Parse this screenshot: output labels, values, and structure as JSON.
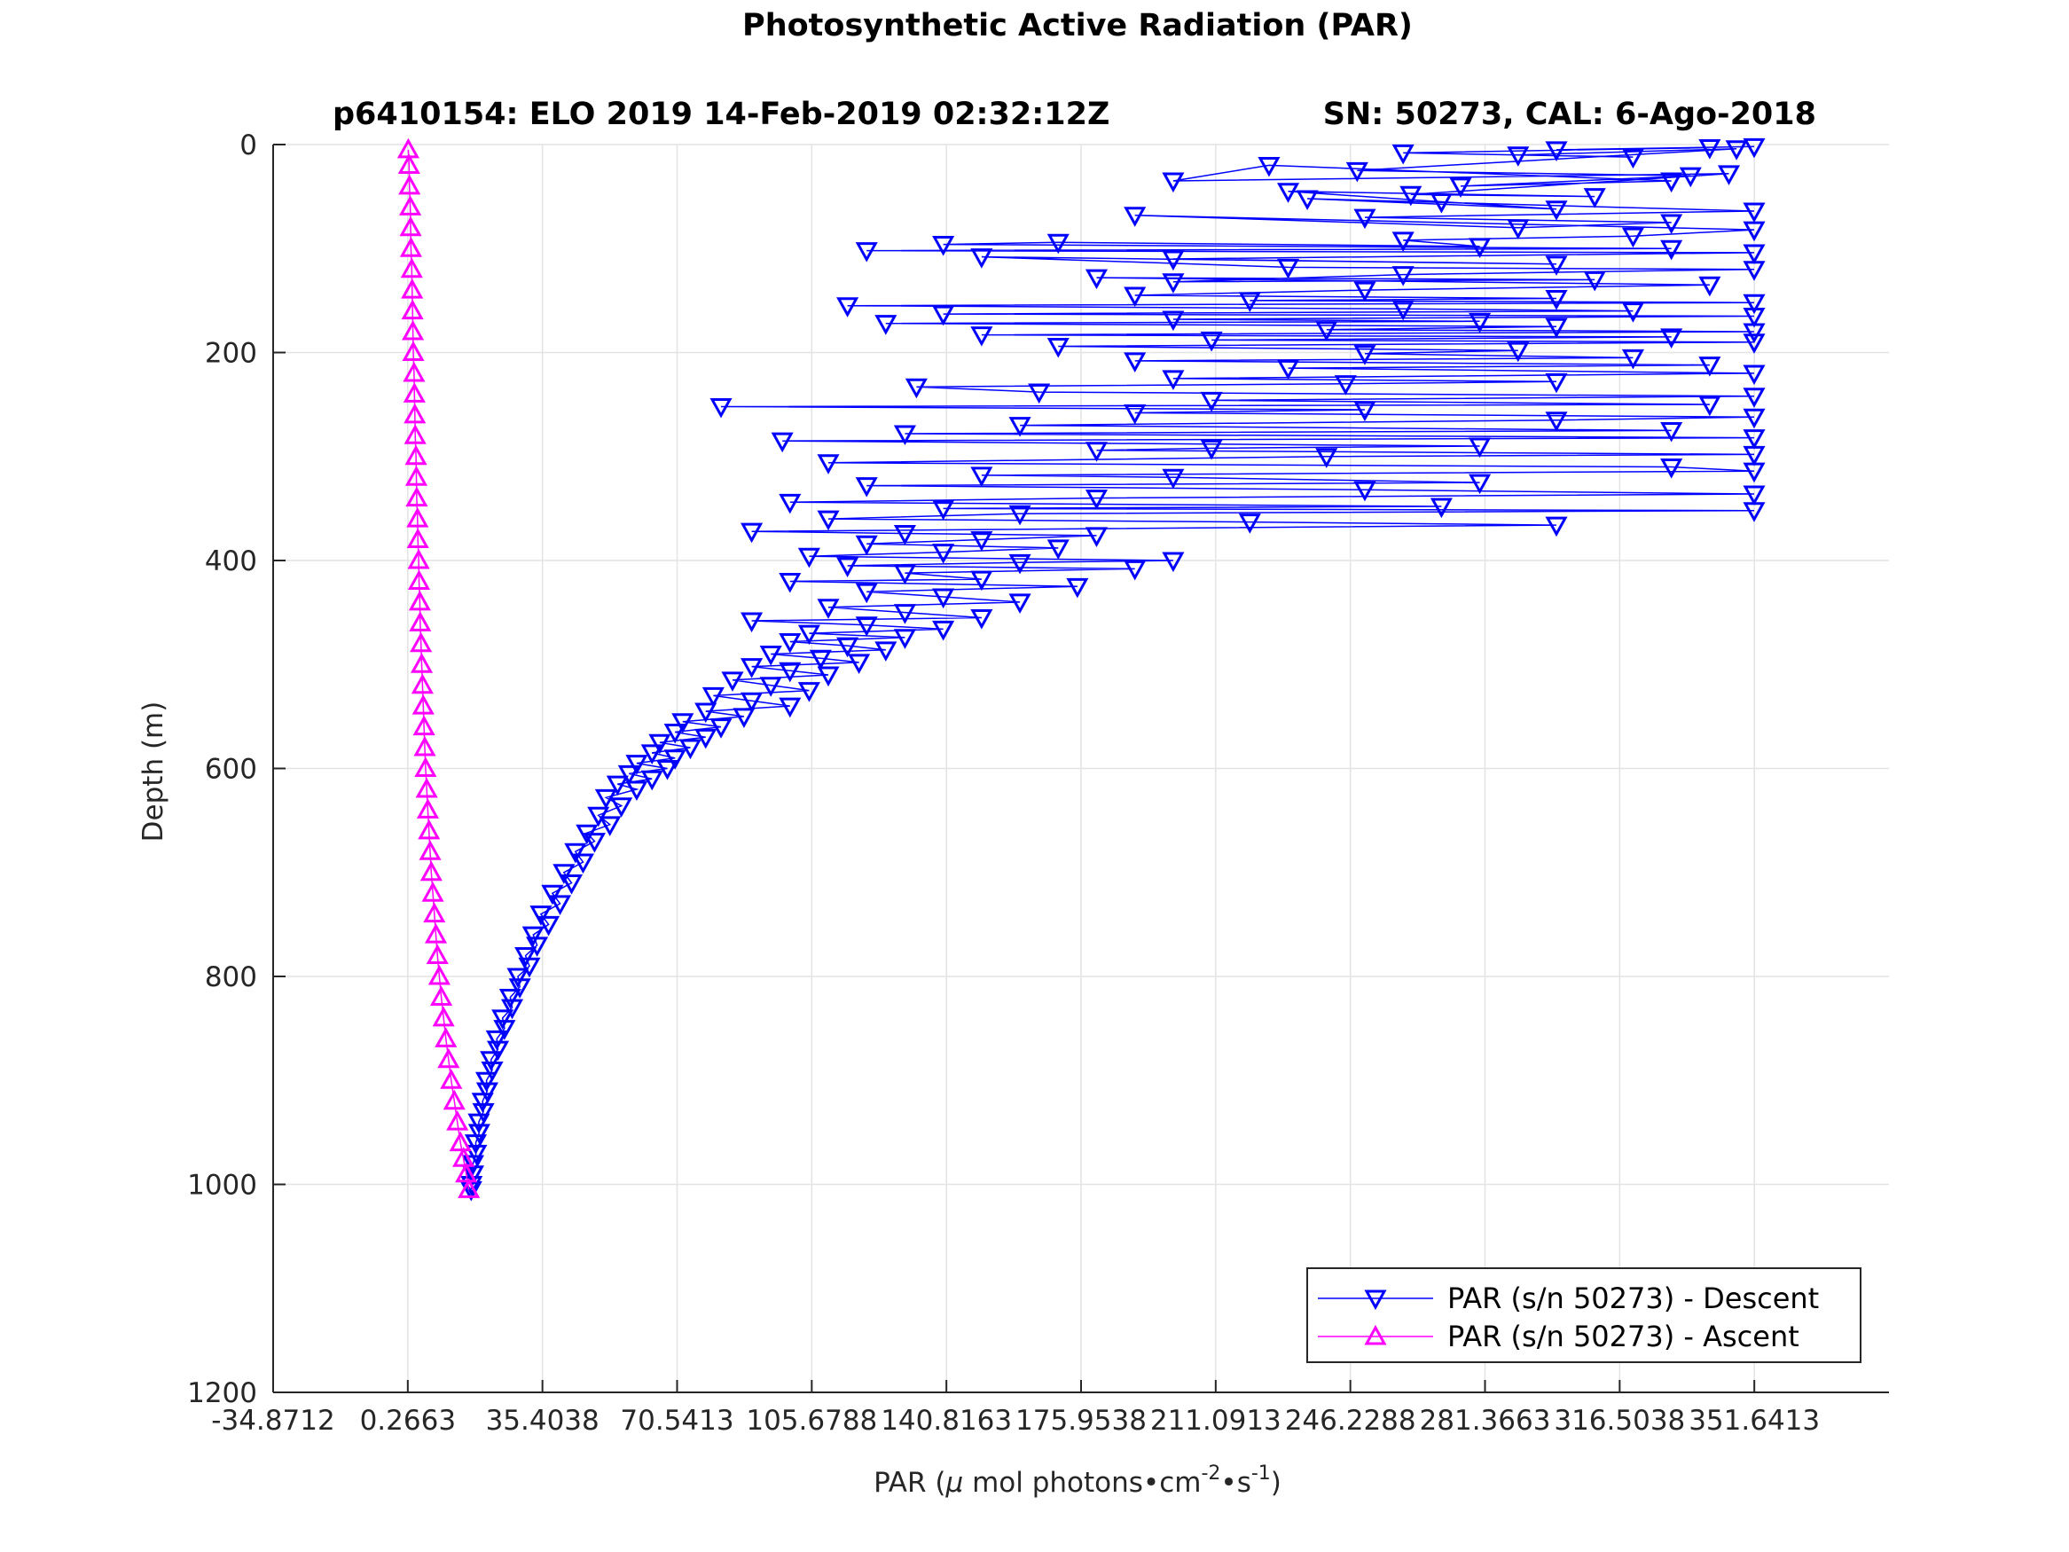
{
  "chart_data": {
    "type": "line",
    "title": "Photosynthetic Active Radiation (PAR)",
    "subtitle_left": "p6410154: ELO 2019 14-Feb-2019 02:32:12Z",
    "subtitle_right": "SN: 50273, CAL: 6-Ago-2018",
    "xlabel_prefix": "PAR (",
    "xlabel_mu": "μ",
    "xlabel_mid": " mol photons",
    "xlabel_bullet1": "•",
    "xlabel_cm": "cm",
    "xlabel_sup1": "-2",
    "xlabel_bullet2": "•",
    "xlabel_s": "s",
    "xlabel_sup2": "-1",
    "xlabel_suffix": ")",
    "ylabel": "Depth (m)",
    "xlim": [
      -34.8712,
      386.7788
    ],
    "ylim": [
      0,
      1200
    ],
    "y_reversed": true,
    "grid": true,
    "xticks": [
      -34.8712,
      0.2663,
      35.4038,
      70.5413,
      105.6788,
      140.8163,
      175.9538,
      211.0913,
      246.2288,
      281.3663,
      316.5038,
      351.6413
    ],
    "xtick_labels": [
      "-34.8712",
      "0.2663",
      "35.4038",
      "70.5413",
      "105.6788",
      "140.8163",
      "175.9538",
      "211.0913",
      "246.2288",
      "281.3663",
      "316.5038",
      "351.6413"
    ],
    "yticks": [
      0,
      200,
      400,
      600,
      800,
      1000,
      1200
    ],
    "ytick_labels": [
      "0",
      "200",
      "400",
      "600",
      "800",
      "1000",
      "1200"
    ],
    "legend_position": "bottom-right",
    "series": [
      {
        "name": "PAR (s/n 50273) - Descent",
        "color": "#0000ff",
        "marker": "triangle-down",
        "points": [
          [
            351.6,
            2
          ],
          [
            300,
            5
          ],
          [
            340,
            3
          ],
          [
            260,
            8
          ],
          [
            320,
            12
          ],
          [
            290,
            10
          ],
          [
            347,
            4
          ],
          [
            248,
            25
          ],
          [
            335,
            30
          ],
          [
            275,
            40
          ],
          [
            330,
            35
          ],
          [
            225,
            20
          ],
          [
            200,
            35
          ],
          [
            345,
            28
          ],
          [
            262,
            48
          ],
          [
            310,
            50
          ],
          [
            230,
            45
          ],
          [
            270,
            55
          ],
          [
            300,
            62
          ],
          [
            235,
            52
          ],
          [
            351.6,
            64
          ],
          [
            250,
            70
          ],
          [
            330,
            75
          ],
          [
            290,
            80
          ],
          [
            190,
            68
          ],
          [
            351.6,
            82
          ],
          [
            320,
            88
          ],
          [
            260,
            92
          ],
          [
            280,
            98
          ],
          [
            170,
            94
          ],
          [
            140,
            96
          ],
          [
            330,
            100
          ],
          [
            120,
            102
          ],
          [
            351.6,
            104
          ],
          [
            200,
            110
          ],
          [
            300,
            115
          ],
          [
            150,
            108
          ],
          [
            230,
            118
          ],
          [
            351.6,
            120
          ],
          [
            260,
            125
          ],
          [
            200,
            132
          ],
          [
            310,
            130
          ],
          [
            180,
            128
          ],
          [
            340,
            135
          ],
          [
            250,
            140
          ],
          [
            190,
            145
          ],
          [
            300,
            148
          ],
          [
            220,
            150
          ],
          [
            351.6,
            152
          ],
          [
            115,
            155
          ],
          [
            260,
            158
          ],
          [
            320,
            160
          ],
          [
            140,
            163
          ],
          [
            351.6,
            165
          ],
          [
            200,
            168
          ],
          [
            280,
            170
          ],
          [
            125,
            172
          ],
          [
            300,
            175
          ],
          [
            240,
            178
          ],
          [
            351.6,
            180
          ],
          [
            150,
            183
          ],
          [
            330,
            185
          ],
          [
            210,
            188
          ],
          [
            351.6,
            190
          ],
          [
            170,
            194
          ],
          [
            290,
            198
          ],
          [
            250,
            201
          ],
          [
            320,
            205
          ],
          [
            190,
            208
          ],
          [
            340,
            212
          ],
          [
            230,
            215
          ],
          [
            351.6,
            220
          ],
          [
            200,
            225
          ],
          [
            300,
            228
          ],
          [
            245,
            230
          ],
          [
            133,
            233
          ],
          [
            165,
            238
          ],
          [
            351.6,
            242
          ],
          [
            210,
            246
          ],
          [
            340,
            250
          ],
          [
            82,
            252
          ],
          [
            250,
            255
          ],
          [
            190,
            258
          ],
          [
            351.6,
            262
          ],
          [
            300,
            265
          ],
          [
            160,
            270
          ],
          [
            330,
            275
          ],
          [
            130,
            278
          ],
          [
            351.6,
            282
          ],
          [
            98,
            285
          ],
          [
            280,
            290
          ],
          [
            210,
            292
          ],
          [
            180,
            294
          ],
          [
            351.6,
            298
          ],
          [
            240,
            300
          ],
          [
            110,
            306
          ],
          [
            330,
            310
          ],
          [
            351.6,
            314
          ],
          [
            150,
            318
          ],
          [
            200,
            320
          ],
          [
            280,
            325
          ],
          [
            120,
            328
          ],
          [
            250,
            332
          ],
          [
            351.6,
            336
          ],
          [
            180,
            340
          ],
          [
            100,
            344
          ],
          [
            270,
            348
          ],
          [
            140,
            350
          ],
          [
            351.6,
            352
          ],
          [
            160,
            355
          ],
          [
            110,
            360
          ],
          [
            220,
            363
          ],
          [
            300,
            366
          ],
          [
            90,
            372
          ],
          [
            130,
            374
          ],
          [
            180,
            376
          ],
          [
            150,
            380
          ],
          [
            120,
            384
          ],
          [
            170,
            388
          ],
          [
            140,
            392
          ],
          [
            105,
            396
          ],
          [
            200,
            400
          ],
          [
            160,
            402
          ],
          [
            115,
            405
          ],
          [
            190,
            408
          ],
          [
            130,
            412
          ],
          [
            150,
            418
          ],
          [
            100,
            420
          ],
          [
            175,
            425
          ],
          [
            120,
            430
          ],
          [
            140,
            435
          ],
          [
            160,
            440
          ],
          [
            110,
            445
          ],
          [
            130,
            450
          ],
          [
            150,
            455
          ],
          [
            90,
            458
          ],
          [
            120,
            462
          ],
          [
            140,
            466
          ],
          [
            105,
            470
          ],
          [
            130,
            474
          ],
          [
            100,
            478
          ],
          [
            115,
            482
          ],
          [
            125,
            486
          ],
          [
            95,
            490
          ],
          [
            108,
            494
          ],
          [
            118,
            498
          ],
          [
            90,
            502
          ],
          [
            100,
            506
          ],
          [
            110,
            510
          ],
          [
            85,
            515
          ],
          [
            95,
            520
          ],
          [
            105,
            525
          ],
          [
            80,
            530
          ],
          [
            90,
            535
          ],
          [
            100,
            540
          ],
          [
            78,
            545
          ],
          [
            88,
            550
          ],
          [
            72,
            555
          ],
          [
            82,
            560
          ],
          [
            70,
            565
          ],
          [
            78,
            570
          ],
          [
            66,
            575
          ],
          [
            74,
            580
          ],
          [
            64,
            585
          ],
          [
            70,
            590
          ],
          [
            60,
            595
          ],
          [
            68,
            600
          ],
          [
            58,
            605
          ],
          [
            64,
            610
          ],
          [
            55,
            615
          ],
          [
            60,
            620
          ],
          [
            52,
            628
          ],
          [
            56,
            636
          ],
          [
            50,
            645
          ],
          [
            53,
            654
          ],
          [
            47,
            662
          ],
          [
            49,
            670
          ],
          [
            44,
            680
          ],
          [
            46,
            690
          ],
          [
            41,
            700
          ],
          [
            43,
            710
          ],
          [
            38,
            720
          ],
          [
            40,
            730
          ],
          [
            35,
            740
          ],
          [
            37,
            750
          ],
          [
            33,
            760
          ],
          [
            34,
            770
          ],
          [
            31,
            780
          ],
          [
            32,
            790
          ],
          [
            29,
            800
          ],
          [
            29.5,
            810
          ],
          [
            27,
            820
          ],
          [
            27.5,
            830
          ],
          [
            25,
            840
          ],
          [
            25.5,
            850
          ],
          [
            23.5,
            860
          ],
          [
            23.8,
            870
          ],
          [
            22,
            880
          ],
          [
            22.3,
            890
          ],
          [
            20.8,
            900
          ],
          [
            21,
            910
          ],
          [
            19.8,
            920
          ],
          [
            20,
            930
          ],
          [
            18.8,
            940
          ],
          [
            18.9,
            950
          ],
          [
            18,
            960
          ],
          [
            18.1,
            970
          ],
          [
            17.3,
            980
          ],
          [
            17.3,
            990
          ],
          [
            16.9,
            1000
          ],
          [
            16.8,
            1005
          ]
        ]
      },
      {
        "name": "PAR (s/n 50273) - Ascent",
        "color": "#ff00ff",
        "marker": "triangle-up",
        "points": [
          [
            16.2,
            1005
          ],
          [
            15.5,
            990
          ],
          [
            14.8,
            975
          ],
          [
            14,
            960
          ],
          [
            13.2,
            940
          ],
          [
            12.4,
            920
          ],
          [
            11.6,
            900
          ],
          [
            10.9,
            880
          ],
          [
            10.2,
            860
          ],
          [
            9.6,
            840
          ],
          [
            9.0,
            820
          ],
          [
            8.5,
            800
          ],
          [
            8.0,
            780
          ],
          [
            7.6,
            760
          ],
          [
            7.2,
            740
          ],
          [
            6.8,
            720
          ],
          [
            6.4,
            700
          ],
          [
            6.1,
            680
          ],
          [
            5.8,
            660
          ],
          [
            5.5,
            640
          ],
          [
            5.2,
            620
          ],
          [
            4.9,
            600
          ],
          [
            4.7,
            580
          ],
          [
            4.5,
            560
          ],
          [
            4.3,
            540
          ],
          [
            4.1,
            520
          ],
          [
            3.9,
            500
          ],
          [
            3.7,
            480
          ],
          [
            3.5,
            460
          ],
          [
            3.4,
            440
          ],
          [
            3.2,
            420
          ],
          [
            3.1,
            400
          ],
          [
            2.9,
            380
          ],
          [
            2.8,
            360
          ],
          [
            2.6,
            340
          ],
          [
            2.5,
            320
          ],
          [
            2.4,
            300
          ],
          [
            2.2,
            280
          ],
          [
            2.1,
            260
          ],
          [
            2.0,
            240
          ],
          [
            1.9,
            220
          ],
          [
            1.7,
            200
          ],
          [
            1.6,
            180
          ],
          [
            1.5,
            160
          ],
          [
            1.4,
            140
          ],
          [
            1.3,
            120
          ],
          [
            1.1,
            100
          ],
          [
            1.0,
            80
          ],
          [
            0.9,
            60
          ],
          [
            0.7,
            40
          ],
          [
            0.6,
            20
          ],
          [
            0.4,
            5
          ]
        ]
      }
    ]
  }
}
